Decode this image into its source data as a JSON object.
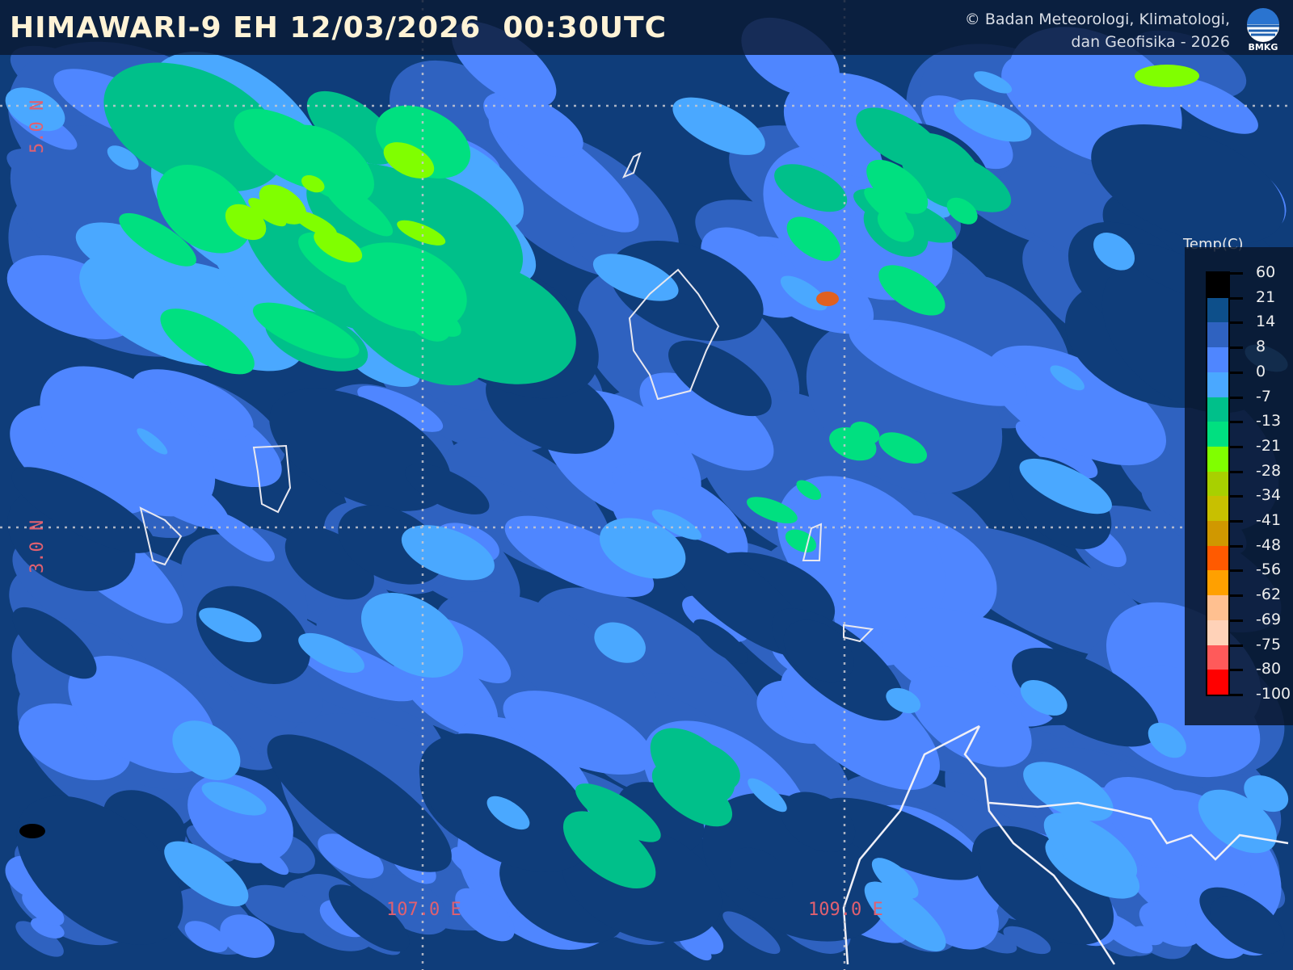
{
  "header": {
    "title": "HIMAWARI-9 EH 12/03/2026  00:30UTC",
    "copyright_line1": "© Badan Meteorologi, Klimatologi,",
    "copyright_line2": "dan Geofisika -  2026",
    "logo_text": "BMKG"
  },
  "grid": {
    "lat_labels": [
      "5.0 N",
      "3.0 N"
    ],
    "lon_labels": [
      "107.0 E",
      "109.0 E"
    ]
  },
  "legend": {
    "title": "Temp(C)",
    "ticks": [
      "60",
      "21",
      "14",
      "8",
      "0",
      "-7",
      "-13",
      "-21",
      "-28",
      "-34",
      "-41",
      "-48",
      "-56",
      "-62",
      "-69",
      "-75",
      "-80",
      "-100"
    ],
    "colors": [
      "#000000",
      "#0d4f8a",
      "#2f62c0",
      "#4f86ff",
      "#4aa8ff",
      "#00c08a",
      "#00e080",
      "#80ff00",
      "#a8d000",
      "#c8c000",
      "#d09800",
      "#ff5a00",
      "#ffa000",
      "#ffc090",
      "#ffd2b8",
      "#ff5a5a",
      "#ff0000"
    ]
  },
  "palette": {
    "navy": "#0f3d7a",
    "mid": "#2f62c0",
    "light": "#4f86ff",
    "sky": "#4aa8ff",
    "teal": "#00c08a",
    "green": "#00e080",
    "lime": "#80ff00",
    "coast": "#e8e8f0"
  }
}
